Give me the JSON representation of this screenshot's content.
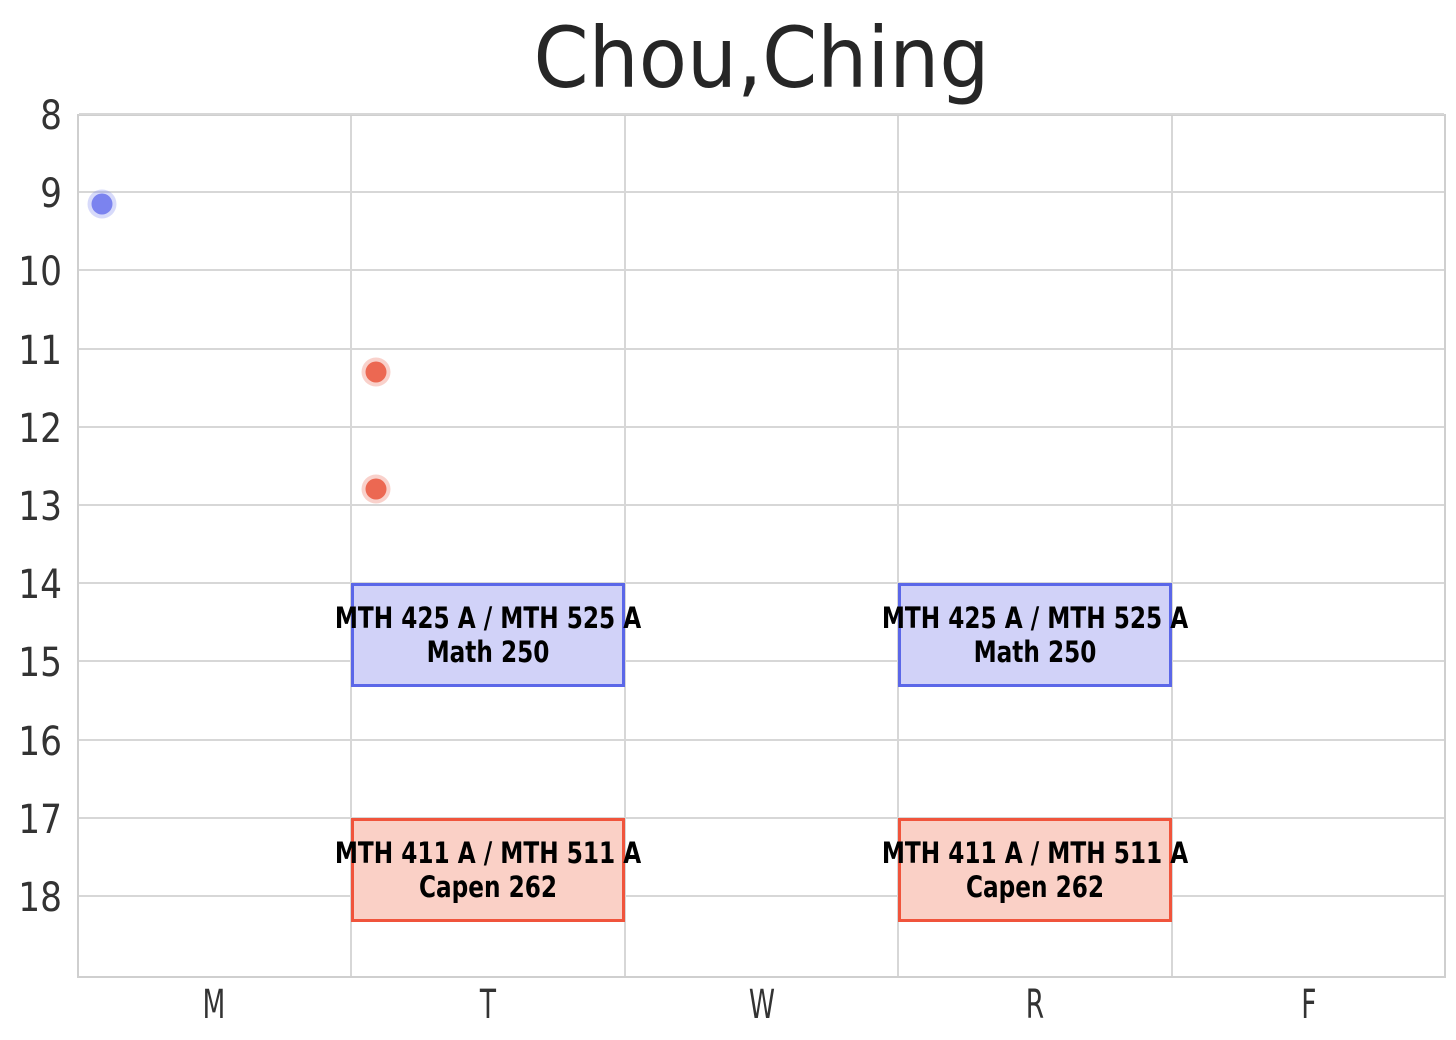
{
  "chart_data": {
    "type": "scatter",
    "subtype": "weekly-schedule",
    "title": "Chou,Ching",
    "grid": true,
    "x_axis": {
      "tick_labels": [
        "M",
        "T",
        "W",
        "R",
        "F"
      ]
    },
    "y_axis": {
      "unit": "hour-of-day",
      "min": 8,
      "max": 19.05,
      "ticks": [
        8,
        9,
        10,
        11,
        12,
        13,
        14,
        15,
        16,
        17,
        18
      ],
      "tick_labels": [
        "8",
        "9",
        "10",
        "11",
        "12",
        "13",
        "14",
        "15",
        "16",
        "17",
        "18"
      ]
    },
    "events": [
      {
        "course": "MTH 425 A / MTH 525 A",
        "room": "Math 250",
        "days": [
          "T",
          "R"
        ],
        "start_hour": 14.0,
        "end_hour": 15.33,
        "fill": "#d1d2f8",
        "border": "#5b67e8"
      },
      {
        "course": "MTH 411 A / MTH 511 A",
        "room": "Capen 262",
        "days": [
          "T",
          "R"
        ],
        "start_hour": 17.0,
        "end_hour": 18.33,
        "fill": "#fad0c6",
        "border": "#f0543c"
      }
    ],
    "points": [
      {
        "day": "M",
        "hour": 9.15,
        "color": "#7b83ef"
      },
      {
        "day": "T",
        "hour": 11.3,
        "color": "#ec6852"
      },
      {
        "day": "T",
        "hour": 12.8,
        "color": "#ec6852"
      }
    ],
    "point_x_fraction": 0.093,
    "colors": {
      "gridline": "#d7d7d7",
      "axis_frame": "#cfcfcf",
      "tick_text": "#333333",
      "title_text": "#262626",
      "event_text": "#000000"
    }
  }
}
